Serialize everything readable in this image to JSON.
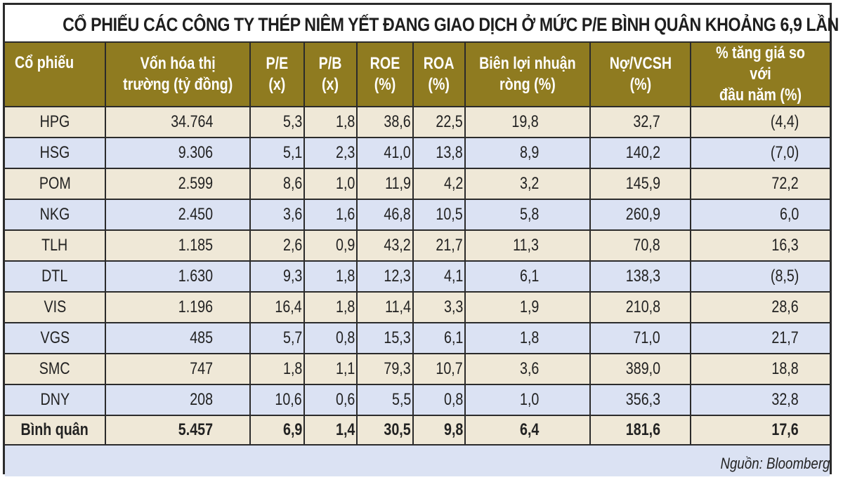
{
  "title": "CỔ PHIẾU CÁC CÔNG TY THÉP NIÊM YẾT ĐANG GIAO DỊCH Ở MỨC P/E BÌNH QUÂN KHOẢNG 6,9 LẦN",
  "table": {
    "headers": [
      "Cổ phiếu",
      "Vốn hóa thị\ntrường (tỷ đồng)",
      "P/E\n(x)",
      "P/B\n(x)",
      "ROE\n(%)",
      "ROA\n(%)",
      "Biên lợi nhuận\nròng (%)",
      "Nợ/VCSH\n(%)",
      "% tăng giá so với\nđầu năm (%)"
    ],
    "rows": [
      {
        "ticker": "HPG",
        "mcap": "34.764",
        "pe": "5,3",
        "pb": "1,8",
        "roe": "38,6",
        "roa": "22,5",
        "margin": "19,8",
        "debt": "32,7",
        "ytd": "(4,4)"
      },
      {
        "ticker": "HSG",
        "mcap": "9.306",
        "pe": "5,1",
        "pb": "2,3",
        "roe": "41,0",
        "roa": "13,8",
        "margin": "8,9",
        "debt": "140,2",
        "ytd": "(7,0)"
      },
      {
        "ticker": "POM",
        "mcap": "2.599",
        "pe": "8,6",
        "pb": "1,0",
        "roe": "11,9",
        "roa": "4,2",
        "margin": "3,2",
        "debt": "145,9",
        "ytd": "72,2"
      },
      {
        "ticker": "NKG",
        "mcap": "2.450",
        "pe": "3,6",
        "pb": "1,6",
        "roe": "46,8",
        "roa": "10,5",
        "margin": "5,8",
        "debt": "260,9",
        "ytd": "6,0"
      },
      {
        "ticker": "TLH",
        "mcap": "1.185",
        "pe": "2,6",
        "pb": "0,9",
        "roe": "43,2",
        "roa": "21,7",
        "margin": "11,3",
        "debt": "70,8",
        "ytd": "16,3"
      },
      {
        "ticker": "DTL",
        "mcap": "1.630",
        "pe": "9,3",
        "pb": "1,8",
        "roe": "12,3",
        "roa": "4,1",
        "margin": "6,1",
        "debt": "138,3",
        "ytd": "(8,5)"
      },
      {
        "ticker": "VIS",
        "mcap": "1.196",
        "pe": "16,4",
        "pb": "1,8",
        "roe": "11,4",
        "roa": "3,3",
        "margin": "1,9",
        "debt": "210,8",
        "ytd": "28,6"
      },
      {
        "ticker": "VGS",
        "mcap": "485",
        "pe": "5,7",
        "pb": "0,8",
        "roe": "15,3",
        "roa": "6,1",
        "margin": "1,8",
        "debt": "71,0",
        "ytd": "21,7"
      },
      {
        "ticker": "SMC",
        "mcap": "747",
        "pe": "1,8",
        "pb": "1,1",
        "roe": "79,3",
        "roa": "10,7",
        "margin": "3,6",
        "debt": "389,0",
        "ytd": "18,8"
      },
      {
        "ticker": "DNY",
        "mcap": "208",
        "pe": "10,6",
        "pb": "0,6",
        "roe": "5,5",
        "roa": "0,8",
        "margin": "1,0",
        "debt": "356,3",
        "ytd": "32,8"
      }
    ],
    "average": {
      "ticker": "Bình quân",
      "mcap": "5.457",
      "pe": "6,9",
      "pb": "1,4",
      "roe": "30,5",
      "roa": "9,8",
      "margin": "6,4",
      "debt": "181,6",
      "ytd": "17,6"
    }
  },
  "source": "Nguồn: Bloomberg",
  "colors": {
    "header_bg": "#8f7b20",
    "row_odd": "#efe8d7",
    "row_even": "#dbe2f3",
    "border": "#2b2b2b"
  }
}
